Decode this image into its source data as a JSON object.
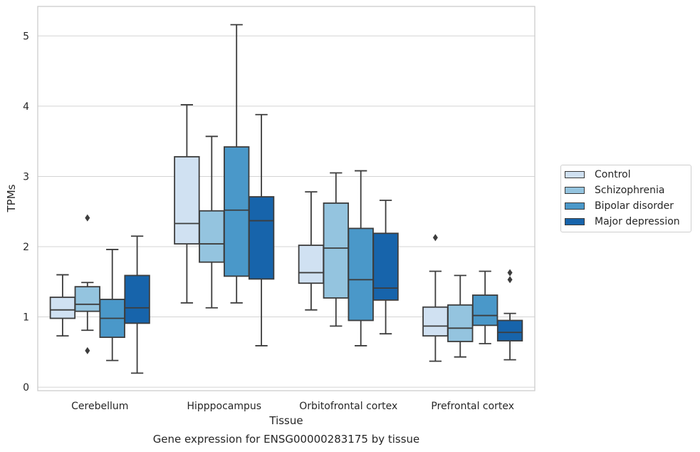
{
  "caption": "Gene expression for ENSG00000283175 by tissue",
  "chart_data": {
    "type": "box",
    "title": "",
    "xlabel": "Tissue",
    "ylabel": "TPMs",
    "ylim": [
      -0.05,
      5.42
    ],
    "yticks": [
      0,
      1,
      2,
      3,
      4,
      5
    ],
    "grid": true,
    "legend_position": "right",
    "categories": [
      "Cerebellum",
      "Hipppocampus",
      "Orbitofrontal cortex",
      "Prefrontal cortex"
    ],
    "series": [
      {
        "name": "Control",
        "color": "#d0e1f2",
        "boxes": [
          {
            "whislo": 0.73,
            "q1": 0.98,
            "med": 1.1,
            "q3": 1.28,
            "whishi": 1.6,
            "fliers": []
          },
          {
            "whislo": 1.2,
            "q1": 2.04,
            "med": 2.33,
            "q3": 3.28,
            "whishi": 4.02,
            "fliers": []
          },
          {
            "whislo": 1.1,
            "q1": 1.48,
            "med": 1.63,
            "q3": 2.02,
            "whishi": 2.78,
            "fliers": []
          },
          {
            "whislo": 0.37,
            "q1": 0.73,
            "med": 0.87,
            "q3": 1.14,
            "whishi": 1.65,
            "fliers": [
              2.13
            ]
          }
        ]
      },
      {
        "name": "Schizophrenia",
        "color": "#94c4df",
        "boxes": [
          {
            "whislo": 0.81,
            "q1": 1.08,
            "med": 1.18,
            "q3": 1.43,
            "whishi": 1.49,
            "fliers": [
              2.41,
              0.52
            ]
          },
          {
            "whislo": 1.13,
            "q1": 1.78,
            "med": 2.04,
            "q3": 2.51,
            "whishi": 3.57,
            "fliers": []
          },
          {
            "whislo": 0.87,
            "q1": 1.27,
            "med": 1.98,
            "q3": 2.62,
            "whishi": 3.05,
            "fliers": []
          },
          {
            "whislo": 0.43,
            "q1": 0.65,
            "med": 0.84,
            "q3": 1.17,
            "whishi": 1.59,
            "fliers": []
          }
        ]
      },
      {
        "name": "Bipolar disorder",
        "color": "#4a98c9",
        "boxes": [
          {
            "whislo": 0.38,
            "q1": 0.71,
            "med": 0.98,
            "q3": 1.25,
            "whishi": 1.96,
            "fliers": []
          },
          {
            "whislo": 1.2,
            "q1": 1.58,
            "med": 2.52,
            "q3": 3.42,
            "whishi": 5.16,
            "fliers": []
          },
          {
            "whislo": 0.59,
            "q1": 0.95,
            "med": 1.53,
            "q3": 2.26,
            "whishi": 3.08,
            "fliers": []
          },
          {
            "whislo": 0.62,
            "q1": 0.88,
            "med": 1.02,
            "q3": 1.31,
            "whishi": 1.65,
            "fliers": []
          }
        ]
      },
      {
        "name": "Major depression",
        "color": "#1764ab",
        "boxes": [
          {
            "whislo": 0.2,
            "q1": 0.91,
            "med": 1.13,
            "q3": 1.59,
            "whishi": 2.15,
            "fliers": []
          },
          {
            "whislo": 0.59,
            "q1": 1.54,
            "med": 2.37,
            "q3": 2.71,
            "whishi": 3.88,
            "fliers": []
          },
          {
            "whislo": 0.76,
            "q1": 1.24,
            "med": 1.41,
            "q3": 2.19,
            "whishi": 2.66,
            "fliers": []
          },
          {
            "whislo": 0.39,
            "q1": 0.66,
            "med": 0.78,
            "q3": 0.95,
            "whishi": 1.05,
            "fliers": [
              1.63,
              1.53
            ]
          }
        ]
      }
    ]
  }
}
